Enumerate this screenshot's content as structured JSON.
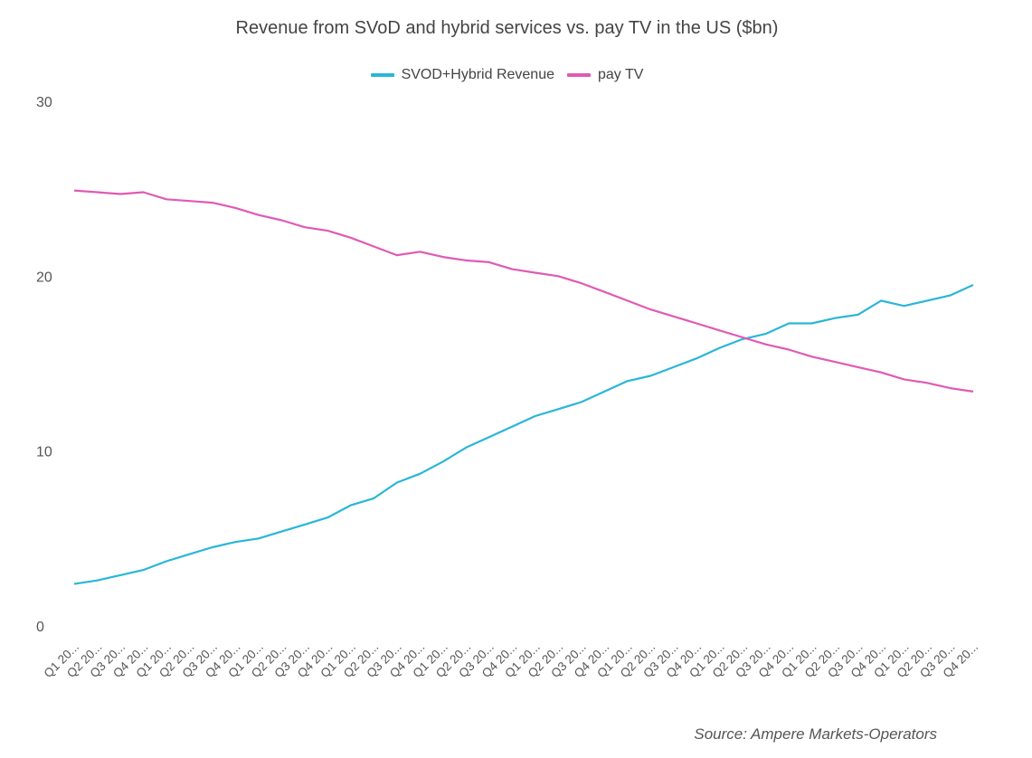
{
  "chart_data": {
    "type": "line",
    "title": "Revenue from SVoD and hybrid services vs. pay TV in the US ($bn)",
    "xlabel": "",
    "ylabel": "",
    "ylim": [
      0,
      30
    ],
    "yticks": [
      0,
      10,
      20,
      30
    ],
    "grid": false,
    "legend_position": "top-center",
    "categories": [
      "Q1 20...",
      "Q2 20...",
      "Q3 20...",
      "Q4 20...",
      "Q1 20...",
      "Q2 20...",
      "Q3 20...",
      "Q4 20...",
      "Q1 20...",
      "Q2 20...",
      "Q3 20...",
      "Q4 20...",
      "Q1 20...",
      "Q2 20...",
      "Q3 20...",
      "Q4 20...",
      "Q1 20...",
      "Q2 20...",
      "Q3 20...",
      "Q4 20...",
      "Q1 20...",
      "Q2 20...",
      "Q3 20...",
      "Q4 20...",
      "Q1 20...",
      "Q2 20...",
      "Q3 20...",
      "Q4 20...",
      "Q1 20...",
      "Q2 20...",
      "Q3 20...",
      "Q4 20...",
      "Q1 20...",
      "Q2 20...",
      "Q3 20...",
      "Q4 20...",
      "Q1 20...",
      "Q2 20...",
      "Q3 20...",
      "Q4 20..."
    ],
    "series": [
      {
        "name": "SVOD+Hybrid Revenue",
        "color": "#29b6d8",
        "values": [
          2.4,
          2.6,
          2.9,
          3.2,
          3.7,
          4.1,
          4.5,
          4.8,
          5.0,
          5.4,
          5.8,
          6.2,
          6.9,
          7.3,
          8.2,
          8.7,
          9.4,
          10.2,
          10.8,
          11.4,
          12.0,
          12.4,
          12.8,
          13.4,
          14.0,
          14.3,
          14.8,
          15.3,
          15.9,
          16.4,
          16.7,
          17.3,
          17.3,
          17.6,
          17.8,
          18.6,
          18.3,
          18.6,
          18.9,
          19.5
        ]
      },
      {
        "name": "pay TV",
        "color": "#e05ab5",
        "values": [
          24.9,
          24.8,
          24.7,
          24.8,
          24.4,
          24.3,
          24.2,
          23.9,
          23.5,
          23.2,
          22.8,
          22.6,
          22.2,
          21.7,
          21.2,
          21.4,
          21.1,
          20.9,
          20.8,
          20.4,
          20.2,
          20.0,
          19.6,
          19.1,
          18.6,
          18.1,
          17.7,
          17.3,
          16.9,
          16.5,
          16.1,
          15.8,
          15.4,
          15.1,
          14.8,
          14.5,
          14.1,
          13.9,
          13.6,
          13.4
        ]
      }
    ]
  },
  "source_text": "Source: Ampere Markets-Operators"
}
